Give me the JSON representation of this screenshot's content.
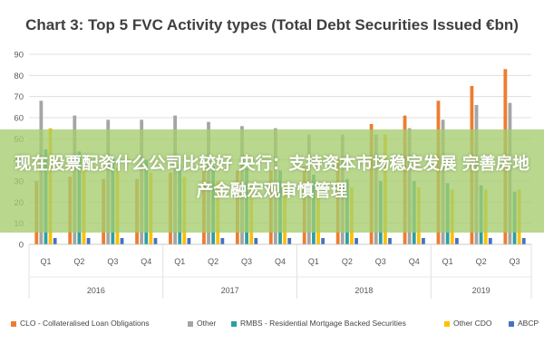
{
  "chart_data": {
    "type": "bar",
    "title": "Chart 3: Top 5 FVC Activity types (Total Debt Securities Issued €bn)",
    "xlabel": "",
    "ylabel": "",
    "ylim": [
      0,
      90
    ],
    "yticks": [
      0,
      10,
      20,
      30,
      40,
      50,
      60,
      70,
      80,
      90
    ],
    "grid": true,
    "legend_position": "bottom",
    "categories": [
      "Q1",
      "Q2",
      "Q3",
      "Q4",
      "Q1",
      "Q2",
      "Q3",
      "Q4",
      "Q1",
      "Q2",
      "Q3",
      "Q4",
      "Q1",
      "Q2",
      "Q3"
    ],
    "year_groups": [
      {
        "label": "2016",
        "count": 4
      },
      {
        "label": "2017",
        "count": 4
      },
      {
        "label": "2018",
        "count": 4
      },
      {
        "label": "2019",
        "count": 3
      }
    ],
    "series": [
      {
        "name": "CLO - Collateralised Loan Obligations",
        "color": "#ed7d31",
        "values": [
          30,
          32,
          31,
          31,
          34,
          35,
          35,
          35,
          37,
          40,
          57,
          61,
          68,
          75,
          83
        ]
      },
      {
        "name": "Other",
        "color": "#a5a5a5",
        "values": [
          68,
          61,
          59,
          59,
          61,
          58,
          56,
          55,
          52,
          52,
          52,
          55,
          59,
          66,
          67
        ]
      },
      {
        "name": "RMBS - Residential Mortgage Backed Securities",
        "color": "#2e9fa3",
        "values": [
          45,
          44,
          42,
          40,
          38,
          37,
          36,
          35,
          33,
          31,
          30,
          30,
          29,
          28,
          25
        ]
      },
      {
        "name": "Other CDO",
        "color": "#ffc000",
        "values": [
          55,
          37,
          36,
          34,
          32,
          30,
          29,
          28,
          27,
          27,
          52,
          27,
          26,
          26,
          26
        ]
      },
      {
        "name": "ABCP",
        "color": "#4472c4",
        "values": [
          3,
          3,
          3,
          3,
          3,
          3,
          3,
          3,
          3,
          3,
          3,
          3,
          3,
          3,
          3
        ]
      }
    ]
  },
  "banner": {
    "text": "现在股票配资什么公司比较好 央行：支持资本市场稳定发展 完善房地产金融宏观审慎管理"
  }
}
